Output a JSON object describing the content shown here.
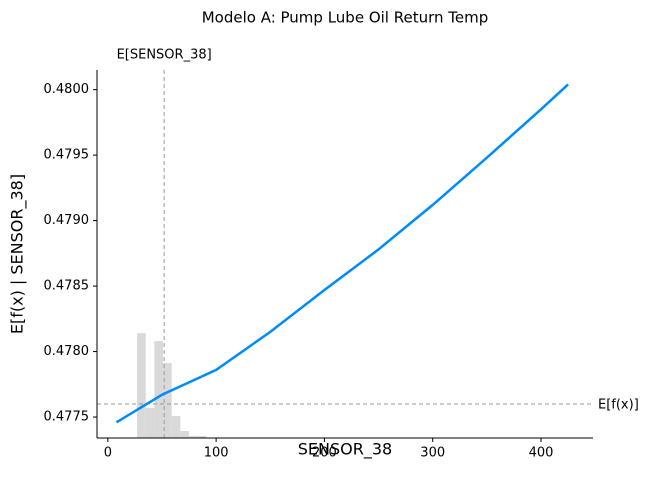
{
  "chart_data": {
    "type": "line",
    "title": "Modelo A: Pump Lube Oil Return Temp",
    "x_label": "SENSOR_38",
    "y_label": "E[f(x) | SENSOR_38]",
    "expected_x_label": "E[SENSOR_38]",
    "expected_y_label": "E[f(x)]",
    "expected_x": 52,
    "expected_y": 0.4776,
    "x": [
      8,
      50,
      100,
      150,
      200,
      250,
      300,
      350,
      400,
      425
    ],
    "series": [
      {
        "name": "SENSOR_38",
        "color": "#008bfb",
        "values": [
          0.47746,
          0.47767,
          0.47786,
          0.47815,
          0.47847,
          0.47878,
          0.47912,
          0.47948,
          0.47985,
          0.48004
        ]
      }
    ],
    "histogram": {
      "color": "#d9d9d9",
      "bins": [
        27,
        35,
        43,
        51,
        59,
        67,
        75,
        83,
        91
      ],
      "counts": [
        105,
        30,
        97,
        75,
        22,
        7,
        2,
        2
      ]
    },
    "xlim": [
      -10,
      448
    ],
    "ylim": [
      0.47734,
      0.48015
    ],
    "xticks": [
      0,
      100,
      200,
      300,
      400
    ],
    "yticks": [
      0.4775,
      {
        "value": 0.478,
        "label": "0.4780"
      },
      0.4785,
      {
        "value": 0.479,
        "label": "0.4790"
      },
      0.4795,
      {
        "value": 0.48,
        "label": "0.4800"
      }
    ],
    "reference_line_color": "#999999"
  }
}
